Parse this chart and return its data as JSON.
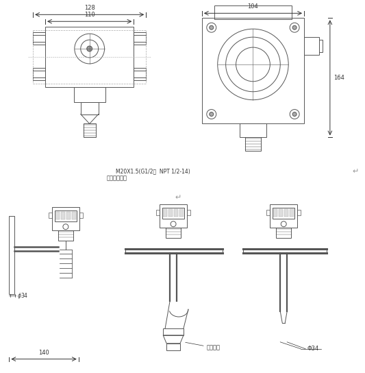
{
  "bg_color": "#ffffff",
  "line_color": "#555555",
  "dim_color": "#333333",
  "text_color": "#333333",
  "fig_width": 5.33,
  "fig_height": 5.44,
  "dpi": 100,
  "annotations": {
    "thread_label": "M20X1.5(G1/2，  NPT 1/2-14)",
    "user_defined": "或由用户选定",
    "cable_label": "导气电缆",
    "dim_128": "128",
    "dim_110": "110",
    "dim_104": "104",
    "dim_164": "164",
    "dim_140": "140",
    "dim_phi34": "Φ34"
  }
}
